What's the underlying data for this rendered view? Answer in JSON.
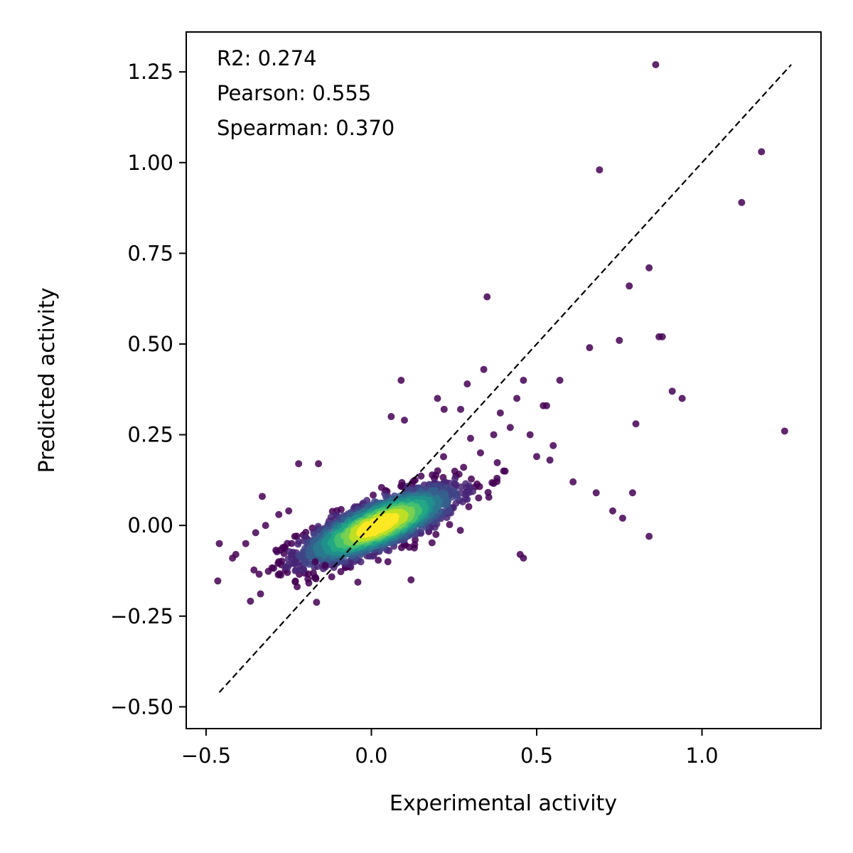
{
  "chart_data": {
    "type": "scatter",
    "title": "",
    "xlabel": "Experimental activity",
    "ylabel": "Predicted activity",
    "xlim": [
      -0.56,
      1.36
    ],
    "ylim": [
      -0.56,
      1.36
    ],
    "xticks": [
      -0.5,
      0.0,
      0.5,
      1.0
    ],
    "xtick_labels": [
      "−0.5",
      "0.0",
      "0.5",
      "1.0"
    ],
    "yticks": [
      -0.5,
      -0.25,
      0.0,
      0.25,
      0.5,
      0.75,
      1.0,
      1.25
    ],
    "ytick_labels": [
      "−0.50",
      "−0.25",
      "0.00",
      "0.25",
      "0.50",
      "0.75",
      "1.00",
      "1.25"
    ],
    "grid": false,
    "legend": "none",
    "colormap": "viridis (point density)",
    "annotations": [
      "R2: 0.274",
      "Pearson: 0.555",
      "Spearman: 0.370"
    ],
    "reference_line": {
      "style": "dashed",
      "color": "#000000",
      "from": [
        -0.46,
        -0.46
      ],
      "to": [
        1.27,
        1.27
      ]
    },
    "outliers": {
      "x": [
        0.86,
        1.18,
        0.69,
        1.12,
        0.84,
        0.78,
        0.35,
        0.87,
        0.88,
        0.75,
        0.66,
        0.09,
        0.29,
        0.34,
        0.46,
        0.57,
        0.91,
        0.94,
        0.52,
        0.53,
        0.2,
        0.22,
        0.27,
        0.39,
        0.42,
        0.44,
        0.48,
        0.8,
        1.25,
        0.06,
        0.1,
        0.37,
        0.55,
        0.61,
        0.68,
        0.79,
        0.73,
        0.76,
        0.84,
        0.5,
        0.54,
        0.45,
        0.46,
        0.38,
        0.4,
        0.33,
        0.3,
        -0.46,
        -0.41,
        -0.42,
        -0.38,
        -0.35,
        -0.32,
        -0.28,
        -0.25,
        -0.22,
        -0.16,
        0.12,
        0.05,
        -0.17,
        -0.14,
        -0.28,
        -0.33
      ],
      "y": [
        1.27,
        1.03,
        0.98,
        0.89,
        0.71,
        0.66,
        0.63,
        0.52,
        0.52,
        0.51,
        0.49,
        0.4,
        0.39,
        0.43,
        0.4,
        0.4,
        0.37,
        0.35,
        0.33,
        0.33,
        0.35,
        0.32,
        0.32,
        0.31,
        0.27,
        0.35,
        0.25,
        0.28,
        0.26,
        0.3,
        0.29,
        0.25,
        0.22,
        0.12,
        0.09,
        0.09,
        0.04,
        0.02,
        -0.03,
        0.19,
        0.18,
        -0.08,
        -0.09,
        0.13,
        0.15,
        0.2,
        0.24,
        -0.05,
        -0.08,
        -0.09,
        -0.05,
        -0.02,
        0.0,
        -0.1,
        0.04,
        0.17,
        0.17,
        -0.15,
        -0.1,
        -0.1,
        -0.11,
        0.03,
        0.08
      ]
    }
  }
}
